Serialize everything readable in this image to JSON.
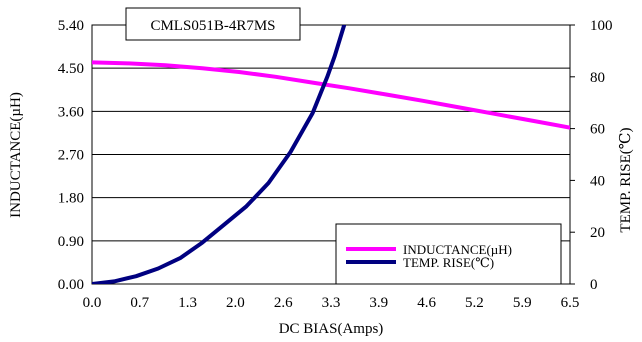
{
  "chart_data": {
    "type": "line",
    "title": "CMLS051B-4R7MS",
    "xlabel": "DC BIAS(Amps)",
    "ylabel_left": "INDUCTANCE(µH)",
    "ylabel_right": "TEMP. RISE(℃)",
    "xlim": [
      0,
      6.5
    ],
    "ylim_left": [
      0,
      5.4
    ],
    "ylim_right": [
      0,
      100
    ],
    "x_ticks": [
      "0.0",
      "0.7",
      "1.3",
      "2.0",
      "2.6",
      "3.3",
      "3.9",
      "4.6",
      "5.2",
      "5.9",
      "6.5"
    ],
    "y_left_ticks": [
      "0.00",
      "0.90",
      "1.80",
      "2.70",
      "3.60",
      "4.50",
      "5.40"
    ],
    "y_right_ticks": [
      "0",
      "20",
      "40",
      "60",
      "80",
      "100"
    ],
    "grid": "horizontal",
    "legend_position": "bottom-right",
    "series": [
      {
        "name": "INDUCTANCE(µH)",
        "axis": "left",
        "color": "#ff00ff",
        "x": [
          0,
          0.5,
          1.0,
          1.5,
          2.0,
          2.5,
          3.0,
          3.5,
          4.0,
          4.5,
          5.0,
          5.5,
          6.0,
          6.5
        ],
        "y": [
          4.62,
          4.6,
          4.56,
          4.5,
          4.42,
          4.32,
          4.2,
          4.08,
          3.95,
          3.82,
          3.68,
          3.54,
          3.4,
          3.26
        ]
      },
      {
        "name": "TEMP. RISE(℃)",
        "axis": "right",
        "color": "#000080",
        "x": [
          0,
          0.3,
          0.6,
          0.9,
          1.2,
          1.5,
          1.8,
          2.1,
          2.4,
          2.7,
          3.0,
          3.2,
          3.3,
          3.43
        ],
        "y": [
          0,
          1,
          3,
          6,
          10,
          16,
          23,
          30,
          39,
          51,
          66,
          80,
          88,
          100
        ]
      }
    ]
  }
}
